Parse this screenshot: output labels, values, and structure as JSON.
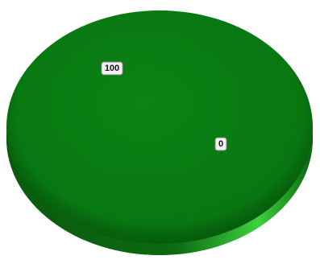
{
  "chart_data": {
    "type": "pie",
    "style": "3d",
    "slices": [
      {
        "value": 100,
        "label": "100",
        "color": "#0a7f12"
      },
      {
        "value": 0,
        "label": "0",
        "color": "#0a7f12"
      }
    ],
    "legend": "none"
  }
}
